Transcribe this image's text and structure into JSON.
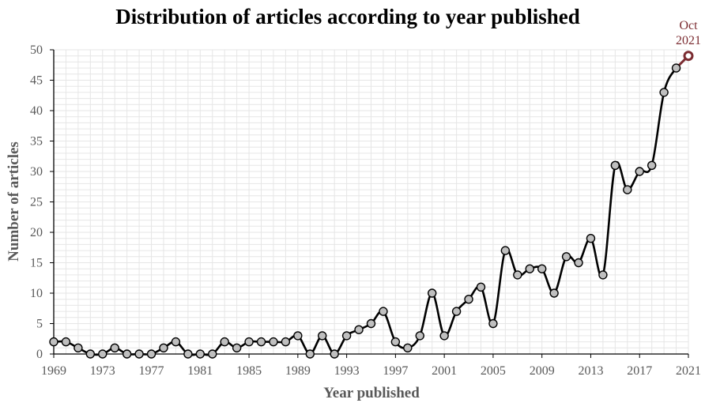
{
  "chart_data": {
    "type": "line",
    "title": "Distribution of articles according to year published",
    "xlabel": "Year published",
    "ylabel": "Number of articles",
    "x": [
      1969,
      1970,
      1971,
      1972,
      1973,
      1974,
      1975,
      1976,
      1977,
      1978,
      1979,
      1980,
      1981,
      1982,
      1983,
      1984,
      1985,
      1986,
      1987,
      1988,
      1989,
      1990,
      1991,
      1992,
      1993,
      1994,
      1995,
      1996,
      1997,
      1998,
      1999,
      2000,
      2001,
      2002,
      2003,
      2004,
      2005,
      2006,
      2007,
      2008,
      2009,
      2010,
      2011,
      2012,
      2013,
      2014,
      2015,
      2016,
      2017,
      2018,
      2019,
      2020,
      2021
    ],
    "values": [
      2,
      2,
      1,
      0,
      0,
      1,
      0,
      0,
      0,
      1,
      2,
      0,
      0,
      0,
      2,
      1,
      2,
      2,
      2,
      2,
      3,
      0,
      3,
      0,
      3,
      4,
      5,
      7,
      2,
      1,
      3,
      10,
      3,
      7,
      9,
      11,
      5,
      17,
      13,
      14,
      14,
      10,
      16,
      15,
      19,
      13,
      31,
      27,
      30,
      31,
      43,
      47,
      49
    ],
    "xlim": [
      1969,
      2021
    ],
    "ylim": [
      0,
      50
    ],
    "x_ticks": [
      "1969",
      "1973",
      "1977",
      "1981",
      "1985",
      "1989",
      "1993",
      "1997",
      "2001",
      "2005",
      "2009",
      "2013",
      "2017",
      "2021"
    ],
    "y_ticks": [
      "0",
      "5",
      "10",
      "15",
      "20",
      "25",
      "30",
      "35",
      "40",
      "45",
      "50"
    ],
    "grid": true,
    "annotation": {
      "lines": [
        "Oct",
        "2021"
      ],
      "color": "#7b2c31"
    },
    "colors": {
      "line": "#000000",
      "marker_fill": "#bfbfbf",
      "highlight": "#7b2c31",
      "grid": "#e6e6e6",
      "text": "#595959"
    }
  }
}
